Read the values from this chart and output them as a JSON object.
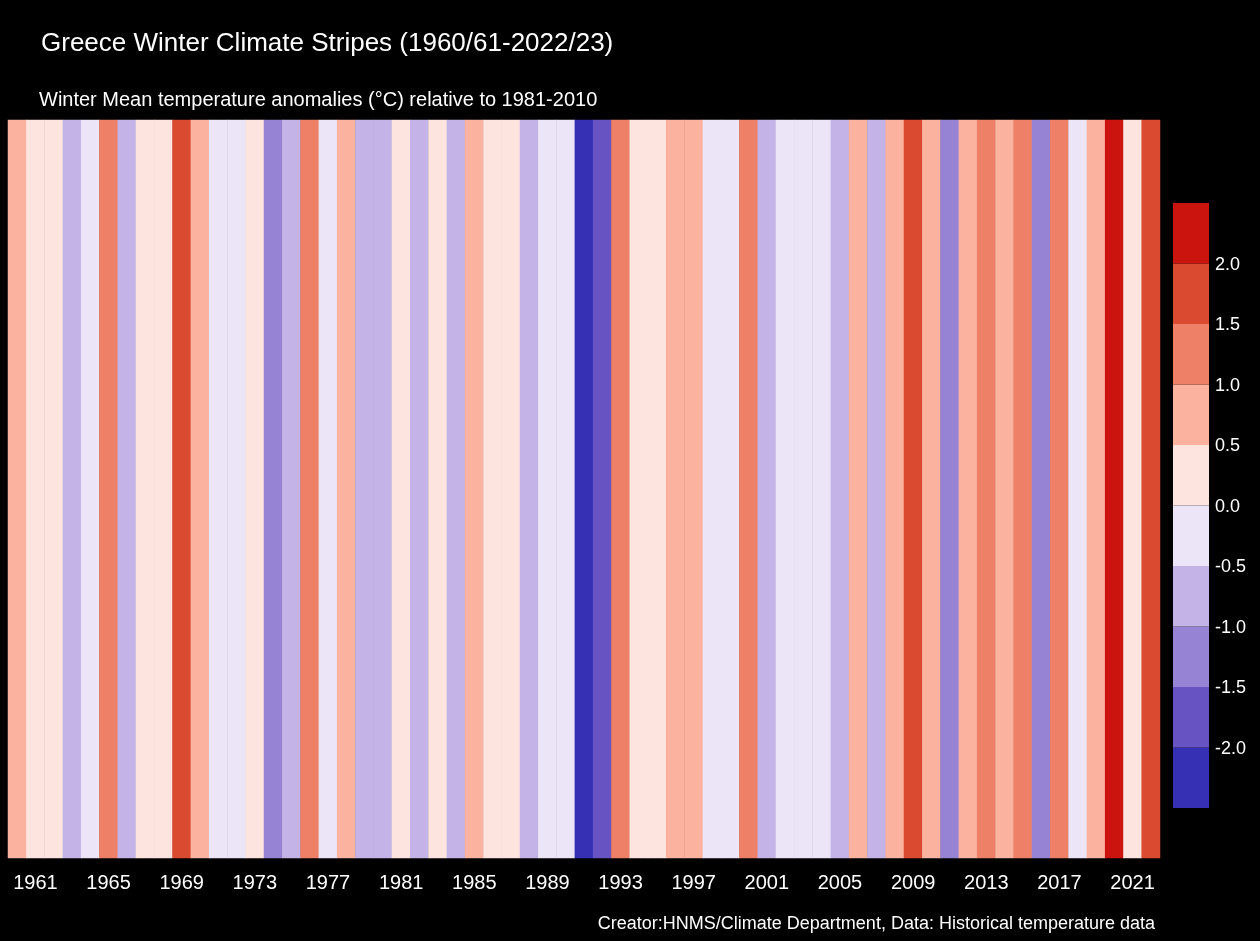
{
  "chart_data": {
    "type": "heatmap",
    "title": "Greece Winter Climate Stripes (1960/61-2022/23)",
    "subtitle": "Winter Mean temperature anomalies (°C) relative to 1981-2010",
    "annotations": [
      "Creator:HNMS/Climate Department, Data: Historical temperature data"
    ],
    "categories": [
      null,
      "1961",
      null,
      null,
      null,
      "1965",
      null,
      null,
      null,
      "1969",
      null,
      null,
      null,
      "1973",
      null,
      null,
      null,
      "1977",
      null,
      null,
      null,
      "1981",
      null,
      null,
      null,
      "1985",
      null,
      null,
      null,
      "1989",
      null,
      null,
      null,
      "1993",
      null,
      null,
      null,
      "1997",
      null,
      null,
      null,
      "2001",
      null,
      null,
      null,
      "2005",
      null,
      null,
      null,
      "2009",
      null,
      null,
      null,
      "2013",
      null,
      null,
      null,
      "2017",
      null,
      null,
      null,
      "2021",
      null
    ],
    "y_categories": [
      null
    ],
    "cells": [
      [
        0.75,
        0.25,
        0.25,
        -0.75,
        -0.25,
        1.25,
        -0.75,
        0.25,
        0.25,
        1.75,
        0.75,
        -0.25,
        -0.25,
        0.25,
        -1.25,
        -0.75,
        1.25,
        -0.25,
        0.75,
        -0.75,
        -0.75,
        0.25,
        -0.75,
        0.25,
        -0.75,
        0.75,
        0.25,
        0.25,
        -0.75,
        -0.25,
        -0.25,
        -2.25,
        -1.75,
        1.25,
        0.25,
        0.25,
        0.75,
        0.75,
        -0.25,
        -0.25,
        1.25,
        -0.75,
        -0.25,
        -0.25,
        -0.25,
        -0.75,
        0.75,
        -0.75,
        0.75,
        1.75,
        0.75,
        -1.25,
        0.75,
        1.25,
        0.75,
        1.25,
        -1.25,
        1.25,
        -0.25,
        0.75,
        2.25,
        0.25,
        1.75
      ]
    ],
    "colors": [
      "#3530b4",
      "#6753c2",
      "#9683d3",
      "#c3b3e6",
      "#ebe5f7",
      "#fee4de",
      "#fbb29e",
      "#ef8068",
      "#da4a30",
      "#cc140e"
    ],
    "clim": [
      -2.5,
      2.5
    ],
    "cticks": [
      {
        "value": -2,
        "label": "-2.0"
      },
      {
        "value": -1.5,
        "label": "-1.5"
      },
      {
        "value": -1,
        "label": "-1.0"
      },
      {
        "value": -0.5,
        "label": "-0.5"
      },
      {
        "value": 0,
        "label": "0.0"
      },
      {
        "value": 0.5,
        "label": "0.5"
      },
      {
        "value": 1,
        "label": "1.0"
      },
      {
        "value": 1.5,
        "label": "1.5"
      },
      {
        "value": 2,
        "label": "2.0"
      }
    ]
  }
}
